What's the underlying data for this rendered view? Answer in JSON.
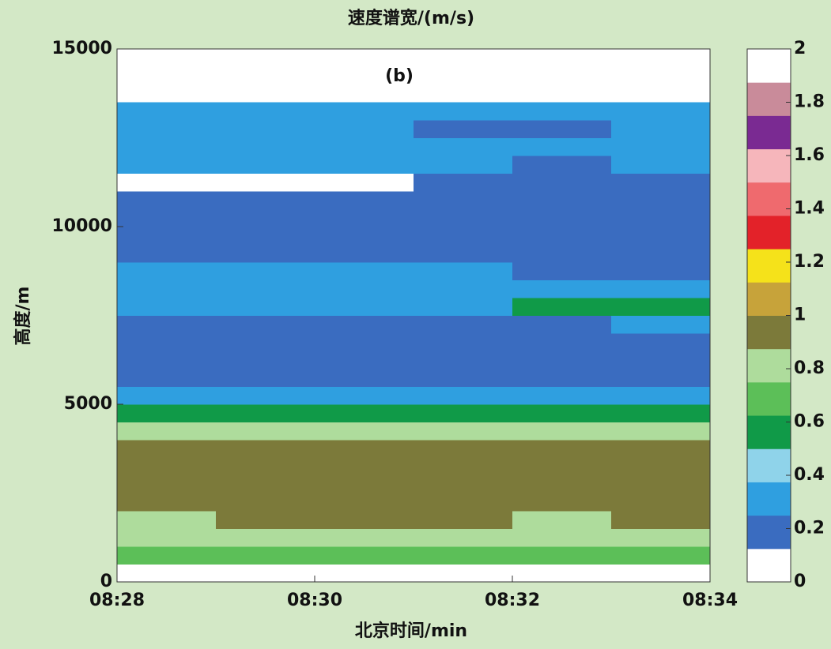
{
  "chart_data": {
    "type": "heatmap",
    "title": "速度谱宽/(m/s)",
    "annotation": "(b)",
    "x_label": "北京时间/min",
    "y_label": "高度/m",
    "x_bins": [
      "08:28",
      "08:29",
      "08:30",
      "08:31",
      "08:32",
      "08:33",
      "08:34"
    ],
    "y_bins": [
      500,
      1000,
      1500,
      2000,
      2500,
      3000,
      3500,
      4000,
      4500,
      5000,
      5500,
      6000,
      6500,
      7000,
      7500,
      8000,
      8500,
      9000,
      9500,
      10000,
      10500,
      11000,
      11500,
      12000,
      12500,
      13000,
      13500
    ],
    "values": [
      [
        0.7,
        0.72,
        0.7,
        0.72,
        0.7,
        0.7
      ],
      [
        0.8,
        0.82,
        0.8,
        0.85,
        0.8,
        0.82
      ],
      [
        0.85,
        0.88,
        0.9,
        0.88,
        0.85,
        0.88
      ],
      [
        0.9,
        0.92,
        0.95,
        0.9,
        0.92,
        0.9
      ],
      [
        0.95,
        0.95,
        0.98,
        0.95,
        0.95,
        0.92
      ],
      [
        0.95,
        0.98,
        0.95,
        0.95,
        0.92,
        0.95
      ],
      [
        0.9,
        0.9,
        0.92,
        0.9,
        0.9,
        0.88
      ],
      [
        0.8,
        0.82,
        0.8,
        0.8,
        0.78,
        0.8
      ],
      [
        0.6,
        0.58,
        0.6,
        0.6,
        0.58,
        0.6
      ],
      [
        0.3,
        0.3,
        0.32,
        0.3,
        0.3,
        0.3
      ],
      [
        0.2,
        0.2,
        0.2,
        0.22,
        0.2,
        0.2
      ],
      [
        0.2,
        0.18,
        0.2,
        0.2,
        0.2,
        0.18
      ],
      [
        0.2,
        0.2,
        0.2,
        0.2,
        0.18,
        0.2
      ],
      [
        0.22,
        0.2,
        0.22,
        0.2,
        0.22,
        0.25
      ],
      [
        0.3,
        0.3,
        0.3,
        0.35,
        0.55,
        0.6
      ],
      [
        0.32,
        0.3,
        0.32,
        0.3,
        0.3,
        0.3
      ],
      [
        0.25,
        0.25,
        0.25,
        0.25,
        0.22,
        0.22
      ],
      [
        0.2,
        0.2,
        0.2,
        0.2,
        0.2,
        0.2
      ],
      [
        0.2,
        0.2,
        0.2,
        0.2,
        0.2,
        0.2
      ],
      [
        0.18,
        0.18,
        0.2,
        0.2,
        0.2,
        0.2
      ],
      [
        0.15,
        0.15,
        0.18,
        0.18,
        0.2,
        0.2
      ],
      [
        0.1,
        0.1,
        0.12,
        0.15,
        0.2,
        0.2
      ],
      [
        0.3,
        0.28,
        0.25,
        0.25,
        0.22,
        0.25
      ],
      [
        0.35,
        0.35,
        0.3,
        0.3,
        0.25,
        0.3
      ],
      [
        0.25,
        0.25,
        0.25,
        0.22,
        0.22,
        0.25
      ],
      [
        0.3,
        0.28,
        0.28,
        0.3,
        0.28,
        0.3
      ]
    ],
    "xlim": [
      "08:28",
      "08:34"
    ],
    "xticks": [
      "08:28",
      "08:30",
      "08:32",
      "08:34"
    ],
    "ylim": [
      0,
      15000
    ],
    "yticks": [
      0,
      5000,
      10000,
      15000
    ],
    "clim": [
      0,
      2
    ],
    "cticks": [
      0,
      0.2,
      0.4,
      0.6,
      0.8,
      1,
      1.2,
      1.4,
      1.6,
      1.8,
      2
    ],
    "colors": [
      "#ffffff",
      "#3a6cc0",
      "#2f9fe0",
      "#8fd3ea",
      "#109a48",
      "#5cbf58",
      "#aedc9c",
      "#7c7a3a",
      "#c7a33a",
      "#f5e21a",
      "#e32229",
      "#ef6a6e",
      "#f6b6bb",
      "#7a2a92",
      "#c98b9a",
      "#ffffff"
    ]
  }
}
